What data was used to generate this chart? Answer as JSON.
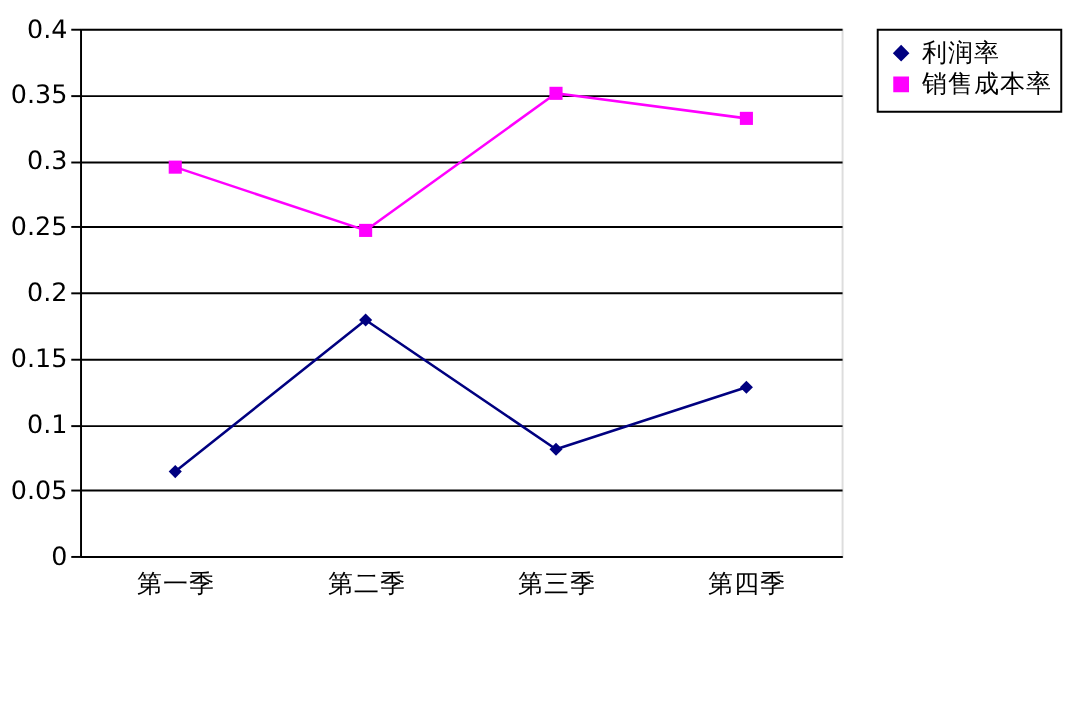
{
  "chart_data": {
    "type": "line",
    "categories": [
      "第一季",
      "第二季",
      "第三季",
      "第四季"
    ],
    "series": [
      {
        "name": "利润率",
        "color": "#000080",
        "marker": "diamond",
        "values": [
          0.064,
          0.179,
          0.081,
          0.128
        ]
      },
      {
        "name": "销售成本率",
        "color": "#ff00ff",
        "marker": "square",
        "values": [
          0.295,
          0.247,
          0.351,
          0.332
        ]
      }
    ],
    "ylim": [
      0,
      0.4
    ],
    "yticks": [
      0,
      0.05,
      0.1,
      0.15,
      0.2,
      0.25,
      0.3,
      0.35,
      0.4
    ],
    "grid": "y",
    "legend": "right"
  }
}
